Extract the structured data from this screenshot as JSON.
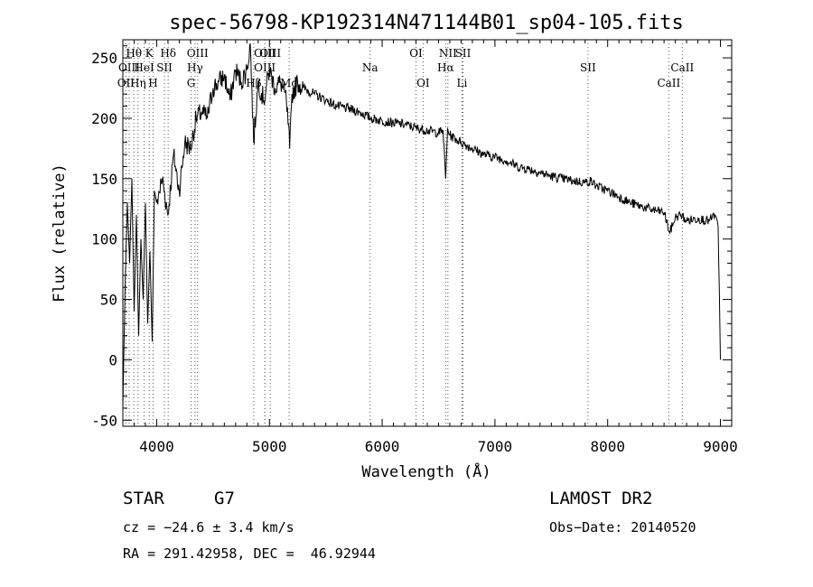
{
  "chart_data": {
    "type": "line",
    "title": "spec-56798-KP192314N471144B01_sp04-105.fits",
    "xlabel": "Wavelength (Å)",
    "ylabel": "Flux (relative)",
    "xlim": [
      3700,
      9100
    ],
    "ylim": [
      -55,
      265
    ],
    "xticks": [
      4000,
      5000,
      6000,
      7000,
      8000,
      9000
    ],
    "yticks": [
      -50,
      0,
      50,
      100,
      150,
      200,
      250
    ],
    "grid": false,
    "series": [
      {
        "x": [
          3700,
          3720,
          3740,
          3760,
          3780,
          3800,
          3820,
          3840,
          3860,
          3880,
          3900,
          3920,
          3940,
          3960,
          3980,
          4000,
          4050,
          4100,
          4150,
          4200,
          4250,
          4300,
          4350,
          4400,
          4450,
          4500,
          4550,
          4600,
          4650,
          4700,
          4750,
          4800,
          4830,
          4860,
          4900,
          4950,
          5000,
          5050,
          5100,
          5150,
          5180,
          5200,
          5250,
          5300,
          5400,
          5500,
          5600,
          5700,
          5800,
          5900,
          6000,
          6100,
          6200,
          6300,
          6400,
          6500,
          6540,
          6563,
          6580,
          6600,
          6700,
          6800,
          6900,
          7000,
          7100,
          7200,
          7300,
          7400,
          7500,
          7600,
          7700,
          7800,
          7850,
          7900,
          8000,
          8100,
          8200,
          8300,
          8400,
          8500,
          8550,
          8600,
          8650,
          8700,
          8800,
          8900,
          8950,
          8980,
          9000
        ],
        "y": [
          -40,
          60,
          130,
          80,
          150,
          40,
          120,
          20,
          100,
          50,
          130,
          30,
          90,
          15,
          140,
          130,
          150,
          120,
          170,
          140,
          180,
          175,
          200,
          205,
          200,
          225,
          230,
          235,
          215,
          240,
          230,
          240,
          262,
          180,
          230,
          215,
          240,
          225,
          230,
          215,
          175,
          220,
          230,
          225,
          220,
          215,
          210,
          208,
          205,
          200,
          198,
          196,
          195,
          192,
          190,
          188,
          190,
          150,
          192,
          186,
          180,
          175,
          170,
          168,
          165,
          160,
          158,
          155,
          152,
          150,
          148,
          147,
          148,
          144,
          140,
          135,
          130,
          127,
          124,
          122,
          105,
          118,
          120,
          115,
          117,
          115,
          120,
          110,
          0
        ]
      }
    ],
    "line_markers": [
      {
        "label": "OII",
        "x": 3727,
        "row": 3
      },
      {
        "label": "Hθ",
        "x": 3798,
        "row": 1
      },
      {
        "label": "OIII",
        "x": 3756,
        "row": 2
      },
      {
        "label": "Hη",
        "x": 3835,
        "row": 3
      },
      {
        "label": "K",
        "x": 3934,
        "row": 1
      },
      {
        "label": "HeI",
        "x": 3889,
        "row": 2
      },
      {
        "label": "H",
        "x": 3968,
        "row": 3
      },
      {
        "label": "SII",
        "x": 4069,
        "row": 2
      },
      {
        "label": "Hδ",
        "x": 4102,
        "row": 1
      },
      {
        "label": "OIII",
        "x": 4363,
        "row": 1
      },
      {
        "label": "Hγ",
        "x": 4340,
        "row": 2
      },
      {
        "label": "G",
        "x": 4305,
        "row": 3
      },
      {
        "label": "OIII",
        "x": 4959,
        "row": 1
      },
      {
        "label": "OIII",
        "x": 5007,
        "row": 1
      },
      {
        "label": "OIII",
        "x": 4959,
        "row": 2
      },
      {
        "label": "Hβ",
        "x": 4861,
        "row": 3
      },
      {
        "label": "Mg",
        "x": 5175,
        "row": 3
      },
      {
        "label": "Na",
        "x": 5893,
        "row": 2
      },
      {
        "label": "OI",
        "x": 6300,
        "row": 1
      },
      {
        "label": "OI",
        "x": 6363,
        "row": 3
      },
      {
        "label": "NII",
        "x": 6583,
        "row": 1
      },
      {
        "label": "SII",
        "x": 6717,
        "row": 1
      },
      {
        "label": "Hα",
        "x": 6563,
        "row": 2
      },
      {
        "label": "Li",
        "x": 6708,
        "row": 3
      },
      {
        "label": "SII",
        "x": 7825,
        "row": 2
      },
      {
        "label": "CaII",
        "x": 8662,
        "row": 2
      },
      {
        "label": "CaII",
        "x": 8542,
        "row": 3
      }
    ]
  },
  "info": {
    "object_class": "STAR",
    "subclass": "G7",
    "survey": "LAMOST DR2",
    "velocity": "cz = −24.6 ± 3.4 km/s",
    "obs_date": "Obs−Date: 20140520",
    "coords": "RA = 291.42958, DEC =  46.92944"
  }
}
